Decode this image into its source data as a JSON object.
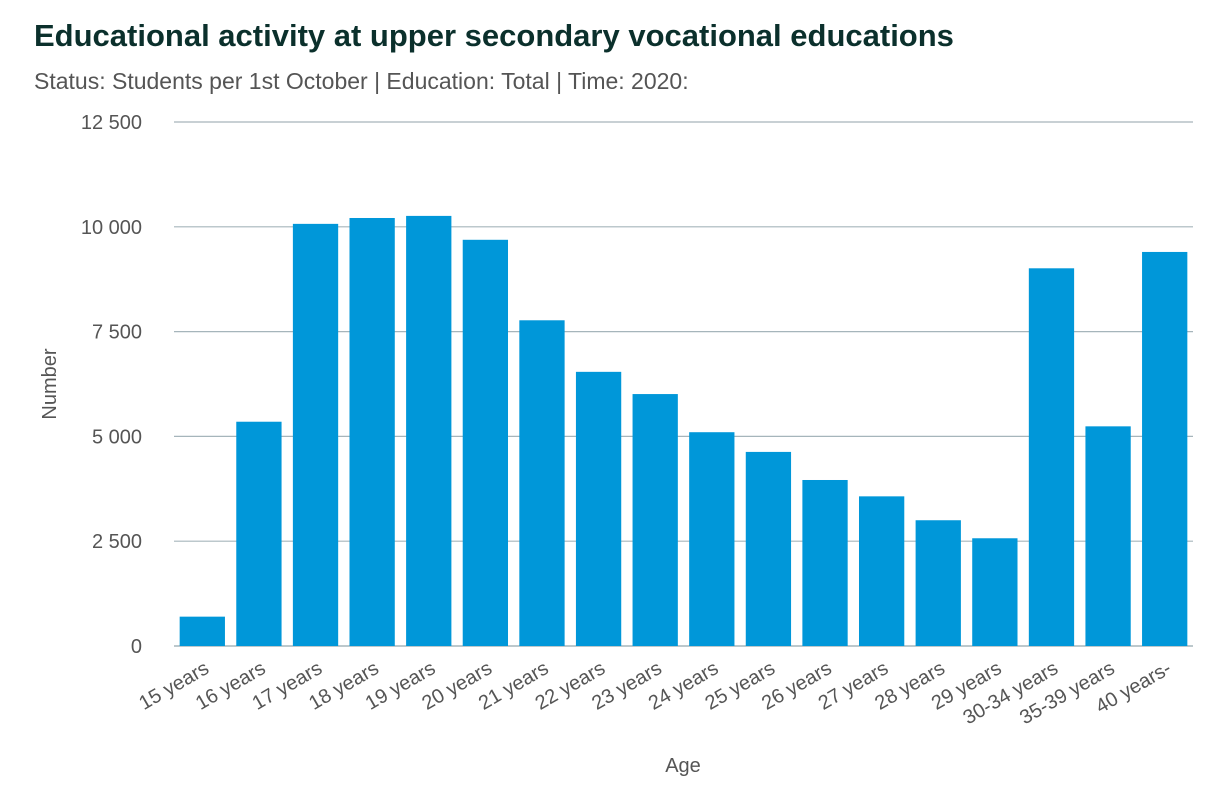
{
  "chart_data": {
    "type": "bar",
    "title": "Educational activity at upper secondary vocational educations",
    "subtitle": "Status: Students per 1st October | Education: Total | Time: 2020:",
    "xlabel": "Age",
    "ylabel": "Number",
    "categories": [
      "15 years",
      "16 years",
      "17 years",
      "18 years",
      "19 years",
      "20 years",
      "21 years",
      "22 years",
      "23 years",
      "24 years",
      "25 years",
      "26 years",
      "27 years",
      "28 years",
      "29 years",
      "30-34 years",
      "35-39 years",
      "40 years-"
    ],
    "values": [
      700,
      5350,
      10070,
      10210,
      10260,
      9690,
      7770,
      6540,
      6010,
      5100,
      4630,
      3960,
      3570,
      3000,
      2570,
      9010,
      5240,
      9400
    ],
    "ylim": [
      0,
      12500
    ],
    "yticks": [
      0,
      2500,
      5000,
      7500,
      10000,
      12500
    ],
    "ytick_labels": [
      "0",
      "2 500",
      "5 000",
      "7 500",
      "10 000",
      "12 500"
    ],
    "grid": true,
    "legend": "none",
    "colors": {
      "bar": "#0097d9",
      "grid": "#a6b5bb",
      "title": "#0b302c",
      "text": "#555555"
    }
  }
}
